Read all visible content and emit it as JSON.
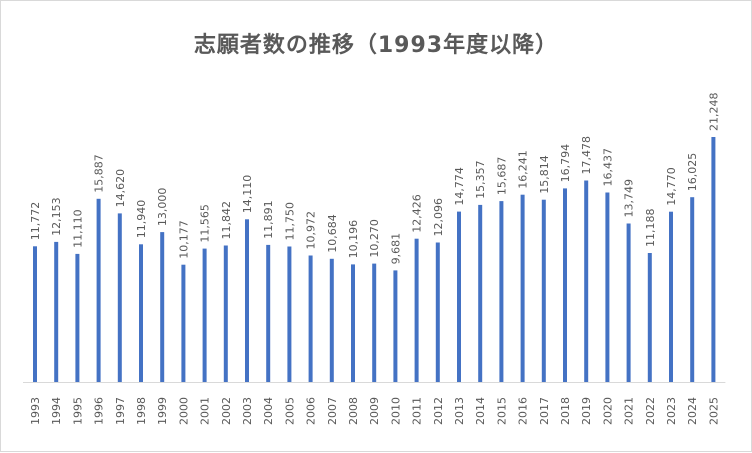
{
  "chart_data": {
    "type": "bar",
    "title": "志願者数の推移（1993年度以降）",
    "xlabel": "",
    "ylabel": "",
    "ylim": [
      0,
      22000
    ],
    "grid": false,
    "legend": "none",
    "bar_color": "#4472c4",
    "categories": [
      "1993",
      "1994",
      "1995",
      "1996",
      "1997",
      "1998",
      "1999",
      "2000",
      "2001",
      "2002",
      "2003",
      "2004",
      "2005",
      "2006",
      "2007",
      "2008",
      "2009",
      "2010",
      "2011",
      "2012",
      "2013",
      "2014",
      "2015",
      "2016",
      "2017",
      "2018",
      "2019",
      "2020",
      "2021",
      "2022",
      "2023",
      "2024",
      "2025"
    ],
    "values": [
      11772,
      12153,
      11110,
      15887,
      14620,
      11940,
      13000,
      10177,
      11565,
      11842,
      14110,
      11891,
      11750,
      10972,
      10684,
      10196,
      10270,
      9681,
      12426,
      12096,
      14774,
      15357,
      15687,
      16241,
      15814,
      16794,
      17478,
      16437,
      13749,
      11188,
      14770,
      16025,
      21248
    ],
    "labels": [
      "11,772",
      "12,153",
      "11,110",
      "15,887",
      "14,620",
      "11,940",
      "13,000",
      "10,177",
      "11,565",
      "11,842",
      "14,110",
      "11,891",
      "11,750",
      "10,972",
      "10,684",
      "10,196",
      "10,270",
      "9,681",
      "12,426",
      "12,096",
      "14,774",
      "15,357",
      "15,687",
      "16,241",
      "15,814",
      "16,794",
      "17,478",
      "16,437",
      "13,749",
      "11,188",
      "14,770",
      "16,025",
      "21,248"
    ]
  }
}
